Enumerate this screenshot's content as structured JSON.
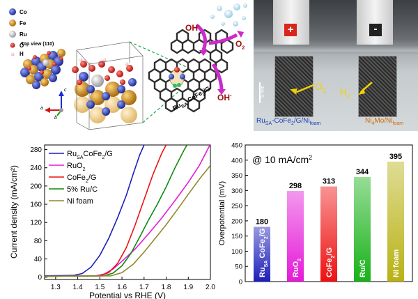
{
  "top_left": {
    "view_label": "Top view (110)",
    "legend": [
      {
        "label": "Co",
        "color": "#2b3fa8"
      },
      {
        "label": "Fe",
        "color": "#c98d1e"
      },
      {
        "label": "Ru",
        "color": "#c9c9c9"
      },
      {
        "label": "O",
        "color": "#e0221b"
      },
      {
        "label": "H",
        "color": "#efc7d2"
      }
    ],
    "axis_labels": {
      "a": "a",
      "b": "b",
      "c": "c"
    },
    "ion_label": "OH",
    "ion_charge": "-",
    "o2_label": "O",
    "o2_sub": "2",
    "catalyst": {
      "ru": "Ru",
      "sa": "SA",
      "rest": "-CoFe",
      "sub2": "2",
      "end": "/G"
    }
  },
  "photo": {
    "plus": "+",
    "minus": "-",
    "scale": "5 mm",
    "o2": "O",
    "o2_sub": "2",
    "h2": "H",
    "h2_sub": "2",
    "left_label": {
      "ru": "Ru",
      "sa": "SA",
      "mid": "-CoFe",
      "sub2": "2",
      "end": "/G/Ni",
      "foam": "foam"
    },
    "right_label": {
      "main": "Ni",
      "four": "4",
      "mo": "Mo/Ni",
      "foam": "foam"
    }
  },
  "colors": {
    "RuSA_CoFe2_G": "#1c1fb8",
    "RuO2": "#e51ad8",
    "CoFe2_G": "#ee1111",
    "Ru_C": "#0e8a0e",
    "Ni_foam": "#8f8a2a",
    "photo_label_left": "#1a3db5",
    "photo_label_right": "#d46a00"
  },
  "chart_data": [
    {
      "type": "line",
      "xlabel": "Potential vs RHE (V)",
      "ylabel": "Current density  (mA/cm²)",
      "xlim": [
        1.25,
        2.0
      ],
      "ylim": [
        -5,
        290
      ],
      "xticks": [
        "1.3",
        "1.4",
        "1.5",
        "1.6",
        "1.7",
        "1.8",
        "1.9",
        "2.0"
      ],
      "yticks": [
        "0",
        "40",
        "80",
        "120",
        "160",
        "200",
        "240",
        "280"
      ],
      "legend_position": "top-left",
      "series": [
        {
          "name": "RuSACoFe2/G",
          "legend_main": "Ru",
          "legend_sub": "SA",
          "legend_rest": "CoFe",
          "legend_sub2": "2",
          "legend_end": "/G",
          "x": [
            1.25,
            1.38,
            1.42,
            1.46,
            1.5,
            1.54,
            1.58,
            1.62,
            1.65,
            1.68,
            1.7
          ],
          "y": [
            3,
            4,
            8,
            22,
            48,
            85,
            130,
            180,
            225,
            268,
            290
          ]
        },
        {
          "name": "RuO2",
          "legend_main": "RuO",
          "legend_sub": "",
          "legend_rest": "",
          "legend_sub2": "2",
          "legend_end": "",
          "x": [
            1.25,
            1.48,
            1.52,
            1.56,
            1.6,
            1.66,
            1.72,
            1.78,
            1.84,
            1.9,
            1.95,
            2.0
          ],
          "y": [
            2,
            3,
            7,
            18,
            35,
            62,
            95,
            130,
            168,
            208,
            245,
            292
          ]
        },
        {
          "name": "CoFe2/G",
          "legend_main": "CoFe",
          "legend_sub": "",
          "legend_rest": "",
          "legend_sub2": "2",
          "legend_end": "/G",
          "x": [
            1.25,
            1.5,
            1.54,
            1.58,
            1.62,
            1.66,
            1.7,
            1.74,
            1.78,
            1.8
          ],
          "y": [
            2,
            3,
            10,
            30,
            65,
            115,
            170,
            225,
            272,
            290
          ]
        },
        {
          "name": "5% Ru/C",
          "legend_main": "5% Ru/C",
          "legend_sub": "",
          "legend_rest": "",
          "legend_sub2": "",
          "legend_end": "",
          "x": [
            1.25,
            1.52,
            1.56,
            1.6,
            1.64,
            1.68,
            1.72,
            1.76,
            1.8,
            1.84,
            1.88,
            1.9
          ],
          "y": [
            2,
            3,
            9,
            25,
            52,
            88,
            125,
            160,
            198,
            240,
            278,
            295
          ]
        },
        {
          "name": "Ni foam",
          "legend_main": "Ni foam",
          "legend_sub": "",
          "legend_rest": "",
          "legend_sub2": "",
          "legend_end": "",
          "x": [
            1.25,
            1.55,
            1.6,
            1.65,
            1.7,
            1.75,
            1.8,
            1.85,
            1.9,
            1.95,
            2.0
          ],
          "y": [
            2,
            3,
            10,
            28,
            55,
            85,
            115,
            148,
            182,
            215,
            245
          ]
        }
      ]
    },
    {
      "type": "bar",
      "annotation": "@ 10 mA/cm",
      "annotation_sup": "2",
      "ylabel": "Overpotential (mV)",
      "ylim": [
        0,
        450
      ],
      "yticks": [
        "0",
        "50",
        "100",
        "150",
        "200",
        "250",
        "300",
        "350",
        "400",
        "450"
      ],
      "categories": [
        "RuSA CoFe2/G",
        "RuO2",
        "CoFe2/G",
        "Ru/C",
        "Ni foam"
      ],
      "values": [
        180,
        298,
        313,
        344,
        395
      ],
      "value_labels": [
        "180",
        "298",
        "313",
        "344",
        "395"
      ],
      "colors": [
        "#1c1fb8",
        "#e51ad8",
        "#ee1111",
        "#18b218",
        "#b8b215"
      ]
    }
  ]
}
